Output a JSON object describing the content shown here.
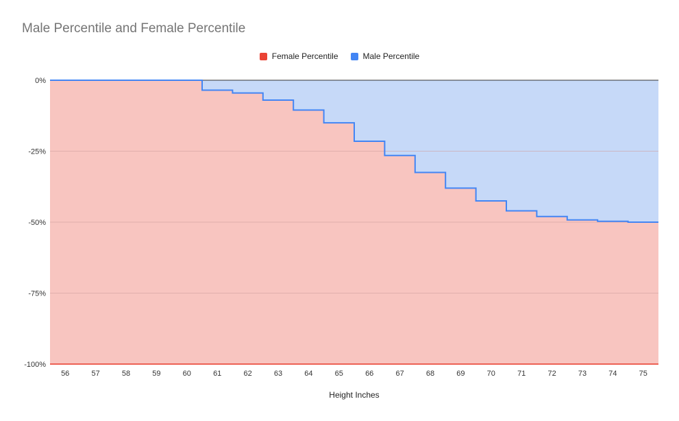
{
  "chart_data": {
    "type": "area",
    "title": "Male Percentile and Female Percentile",
    "xlabel": "Height Inches",
    "ylabel": "",
    "categories": [
      "56",
      "57",
      "58",
      "59",
      "60",
      "61",
      "62",
      "63",
      "64",
      "65",
      "66",
      "67",
      "68",
      "69",
      "70",
      "71",
      "72",
      "73",
      "74",
      "75"
    ],
    "ylim": [
      -100,
      0
    ],
    "yticks": [
      "0%",
      "-25%",
      "-50%",
      "-75%",
      "-100%"
    ],
    "ytick_values": [
      0,
      -25,
      -50,
      -75,
      -100
    ],
    "step": true,
    "legend_position": "top",
    "grid": true,
    "series": [
      {
        "name": "Female Percentile",
        "color": "#ea4335",
        "fill": "#f8c5c0",
        "values": [
          -100,
          -100,
          -100,
          -100,
          -100,
          -100,
          -100,
          -100,
          -100,
          -100,
          -100,
          -100,
          -100,
          -100,
          -100,
          -100,
          -100,
          -100,
          -100,
          -100
        ]
      },
      {
        "name": "Male Percentile",
        "color": "#4285f4",
        "fill": "#c6d9f8",
        "values": [
          0,
          0,
          0,
          0,
          0,
          -3.5,
          -4.5,
          -7,
          -10.5,
          -15,
          -21.5,
          -26.5,
          -32.5,
          -38,
          -42.5,
          -46,
          -48,
          -49.2,
          -49.7,
          -50
        ]
      }
    ]
  }
}
